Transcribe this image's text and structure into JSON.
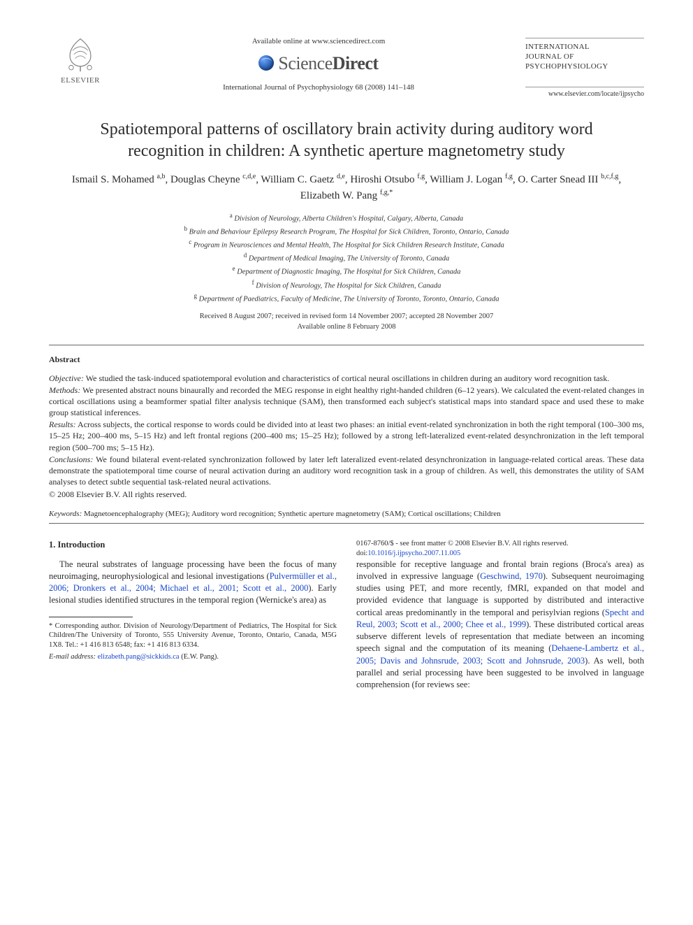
{
  "header": {
    "elsevier_label": "ELSEVIER",
    "available_line": "Available online at www.sciencedirect.com",
    "sd_prefix": "Science",
    "sd_suffix": "Direct",
    "citation": "International Journal of Psychophysiology 68 (2008) 141–148",
    "journal_name_l1": "INTERNATIONAL",
    "journal_name_l2": "JOURNAL OF",
    "journal_name_l3": "PSYCHOPHYSIOLOGY",
    "journal_url": "www.elsevier.com/locate/ijpsycho"
  },
  "title": "Spatiotemporal patterns of oscillatory brain activity during auditory word recognition in children: A synthetic aperture magnetometry study",
  "authors_html": "Ismail S. Mohamed <sup>a,b</sup>, Douglas Cheyne <sup>c,d,e</sup>, William C. Gaetz <sup>d,e</sup>, Hiroshi Otsubo <sup>f,g</sup>, William J. Logan <sup>f,g</sup>, O. Carter Snead III <sup>b,c,f,g</sup>, Elizabeth W. Pang <sup>f,g,*</sup>",
  "affiliations": [
    {
      "sup": "a",
      "text": "Division of Neurology, Alberta Children's Hospital, Calgary, Alberta, Canada"
    },
    {
      "sup": "b",
      "text": "Brain and Behaviour Epilepsy Research Program, The Hospital for Sick Children, Toronto, Ontario, Canada"
    },
    {
      "sup": "c",
      "text": "Program in Neurosciences and Mental Health, The Hospital for Sick Children Research Institute, Canada"
    },
    {
      "sup": "d",
      "text": "Department of Medical Imaging, The University of Toronto, Canada"
    },
    {
      "sup": "e",
      "text": "Department of Diagnostic Imaging, The Hospital for Sick Children, Canada"
    },
    {
      "sup": "f",
      "text": "Division of Neurology, The Hospital for Sick Children, Canada"
    },
    {
      "sup": "g",
      "text": "Department of Paediatrics, Faculty of Medicine, The University of Toronto, Toronto, Ontario, Canada"
    }
  ],
  "dates_l1": "Received 8 August 2007; received in revised form 14 November 2007; accepted 28 November 2007",
  "dates_l2": "Available online 8 February 2008",
  "abstract": {
    "heading": "Abstract",
    "objective_label": "Objective:",
    "objective": " We studied the task-induced spatiotemporal evolution and characteristics of cortical neural oscillations in children during an auditory word recognition task.",
    "methods_label": "Methods:",
    "methods": " We presented abstract nouns binaurally and recorded the MEG response in eight healthy right-handed children (6–12 years). We calculated the event-related changes in cortical oscillations using a beamformer spatial filter analysis technique (SAM), then transformed each subject's statistical maps into standard space and used these to make group statistical inferences.",
    "results_label": "Results:",
    "results": " Across subjects, the cortical response to words could be divided into at least two phases: an initial event-related synchronization in both the right temporal (100–300 ms, 15–25 Hz; 200–400 ms, 5–15 Hz) and left frontal regions (200–400 ms; 15–25 Hz); followed by a strong left-lateralized event-related desynchronization in the left temporal region (500–700 ms; 5–15 Hz).",
    "conclusions_label": "Conclusions:",
    "conclusions": " We found bilateral event-related synchronization followed by later left lateralized event-related desynchronization in language-related cortical areas. These data demonstrate the spatiotemporal time course of neural activation during an auditory word recognition task in a group of children. As well, this demonstrates the utility of SAM analyses to detect subtle sequential task-related neural activations.",
    "copyright": "© 2008 Elsevier B.V. All rights reserved."
  },
  "keywords": {
    "label": "Keywords:",
    "text": " Magnetoencephalography (MEG); Auditory word recognition; Synthetic aperture magnetometry (SAM); Cortical oscillations; Children"
  },
  "intro": {
    "heading": "1. Introduction",
    "para1_pre": "The neural substrates of language processing have been the focus of many neuroimaging, neurophysiological and lesional investigations (",
    "para1_link": "Pulvermüller et al., 2006; Dronkers et al., 2004; Michael et al., 2001; Scott et al., 2000",
    "para1_post": "). Early lesional studies identified structures in the temporal region (Wernicke's area) as",
    "col2_a": "responsible for receptive language and frontal brain regions (Broca's area) as involved in expressive language (",
    "col2_a_link": "Geschwind, 1970",
    "col2_b": "). Subsequent neuroimaging studies using PET, and more recently, fMRI, expanded on that model and provided evidence that language is supported by distributed and interactive cortical areas predominantly in the temporal and perisylvian regions (",
    "col2_b_link": "Specht and Reul, 2003; Scott et al., 2000; Chee et al., 1999",
    "col2_c": "). These distributed cortical areas subserve different levels of representation that mediate between an incoming speech signal and the computation of its meaning (",
    "col2_c_link": "Dehaene-Lambertz et al., 2005; Davis and Johnsrude, 2003; Scott and Johnsrude, 2003",
    "col2_d": "). As well, both parallel and serial processing have been suggested to be involved in language comprehension (for reviews see:"
  },
  "corr": {
    "text": "* Corresponding author. Division of Neurology/Department of Pediatrics, The Hospital for Sick Children/The University of Toronto, 555 University Avenue, Toronto, Ontario, Canada, M5G 1X8. Tel.: +1 416 813 6548; fax: +1 416 813 6334.",
    "email_label": "E-mail address:",
    "email": "elizabeth.pang@sickkids.ca",
    "email_who": " (E.W. Pang)."
  },
  "footer": {
    "line1": "0167-8760/$ - see front matter © 2008 Elsevier B.V. All rights reserved.",
    "doi_label": "doi:",
    "doi": "10.1016/j.ijpsycho.2007.11.005"
  },
  "colors": {
    "link": "#1846c9",
    "text": "#2b2b2b",
    "rule": "#999999"
  }
}
